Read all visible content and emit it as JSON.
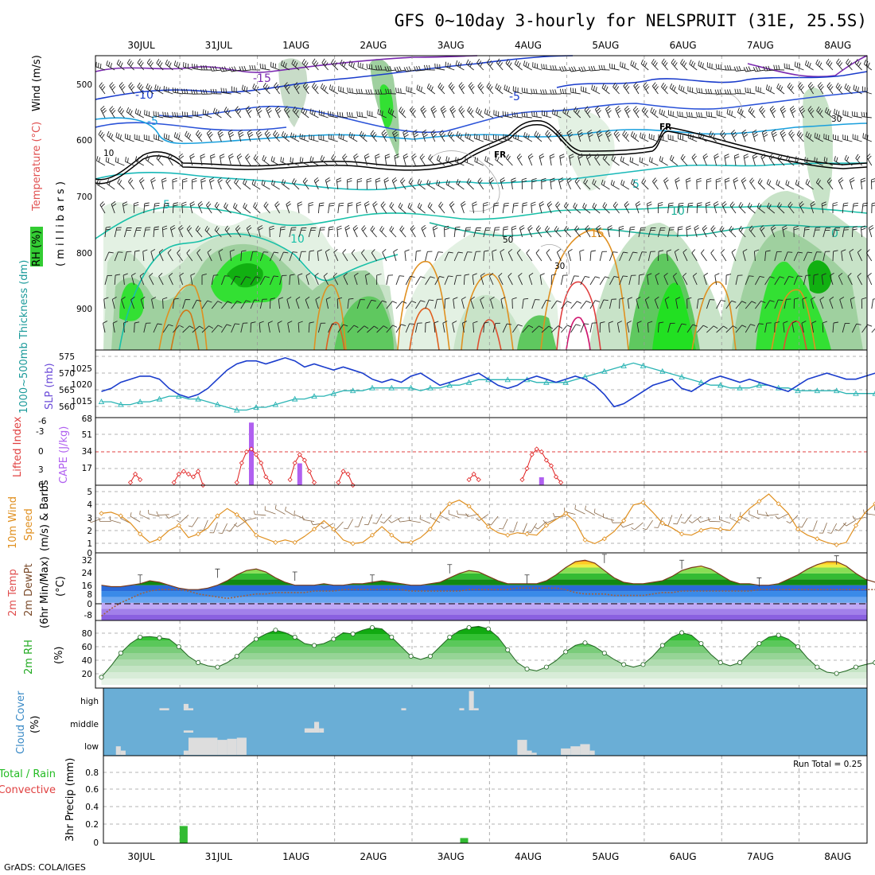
{
  "title": "GFS 0~10day 3-hourly for NELSPRUIT (31E, 25.5S)",
  "footer": "GrADS: COLA/IGES",
  "dates": [
    "30JUL",
    "31JUL",
    "1AUG",
    "2AUG",
    "3AUG",
    "4AUG",
    "5AUG",
    "6AUG",
    "7AUG",
    "8AUG"
  ],
  "panels": {
    "upper": {
      "ylabel_rh": "RH (%)",
      "ylabel_temp": "Temperature (°C)",
      "ylabel_wind": "Wind (m/s)",
      "ylabel_mb": "( m i l l i b a r s )",
      "ticks": [
        "500",
        "600",
        "700",
        "800",
        "900"
      ],
      "contour_labels": [
        "-15",
        "-10",
        "-5",
        "-5",
        "FR",
        "FR",
        "5",
        "5",
        "10",
        "10",
        "15",
        "0",
        "10",
        "30",
        "50",
        "30"
      ]
    },
    "slp": {
      "ylabel_thick": "1000~500mb Thickness (dm)",
      "ylabel_slp": "SLP (mb)",
      "ticks_left": [
        "575",
        "570",
        "565",
        "560"
      ],
      "ticks_right": [
        "1025",
        "1020",
        "1015"
      ]
    },
    "cape": {
      "ylabel_li": "Lifted Index",
      "ylabel_cape": "CAPE (J/kg)",
      "ticks_left": [
        "-6",
        "-3",
        "0",
        "3",
        "6"
      ],
      "ticks_right": [
        "68",
        "51",
        "34",
        "17"
      ]
    },
    "wind10": {
      "ylabel1": "10m Wind",
      "ylabel2": "Speed",
      "ylabel3": "(m/s) & Barbs",
      "ticks": [
        "5",
        "4",
        "3",
        "2",
        "1",
        "0"
      ]
    },
    "temp2m": {
      "ylabel1": "2m Temp",
      "ylabel2": "2m DewPt",
      "ylabel3": "(6hr Min/Max)",
      "ylabel4": "(°C)",
      "ticks": [
        "32",
        "24",
        "16",
        "8",
        "0",
        "-8"
      ]
    },
    "rh2m": {
      "ylabel1": "2m RH",
      "ylabel2": "(%)",
      "ticks": [
        "80",
        "60",
        "40",
        "20"
      ]
    },
    "cloud": {
      "ylabel1": "Cloud Cover",
      "ylabel2": "(%)",
      "levels": [
        "high",
        "middle",
        "low"
      ]
    },
    "precip": {
      "ylabel1": "Total / Rain",
      "ylabel2": "Convective",
      "ylabel3": "3hr Precip (mm)",
      "run_total": "Run Total = 0.25",
      "ticks": [
        "0.8",
        "0.6",
        "0.4",
        "0.2",
        "0"
      ]
    }
  },
  "colors": {
    "slp": "#1a3ccc",
    "thickness": "#2ab4b4",
    "cape": "#b060f0",
    "li": "#e02020",
    "wind_speed": "#e09020",
    "barb": "#8a6a4a",
    "temp_fill": "#3a9a3a",
    "rh_fill": "#3cc83c",
    "cloud_bg": "#6aaed6",
    "cloud_bar": "#dddddd",
    "precip": "#33bb33"
  },
  "chart_data": [
    {
      "type": "line",
      "name": "slp",
      "x_unit": "hours since 29JUL 12Z (3-hourly)",
      "ylim": [
        1010,
        1029
      ],
      "values": [
        1017,
        1018,
        1020,
        1021,
        1022,
        1022,
        1021,
        1018,
        1016,
        1015,
        1016,
        1018,
        1021,
        1024,
        1026,
        1027,
        1027,
        1026,
        1027,
        1028,
        1027,
        1025,
        1026,
        1025,
        1024,
        1025,
        1024,
        1023,
        1021,
        1020,
        1021,
        1020,
        1022,
        1023,
        1021,
        1019,
        1020,
        1021,
        1022,
        1023,
        1021,
        1019,
        1018,
        1019,
        1021,
        1022,
        1021,
        1020,
        1021,
        1022,
        1021,
        1019,
        1016,
        1012,
        1013,
        1015,
        1017,
        1019,
        1020,
        1021,
        1018,
        1017,
        1019,
        1021,
        1022,
        1021,
        1020,
        1021,
        1020,
        1019,
        1018,
        1017,
        1019,
        1021,
        1022,
        1023,
        1022,
        1021,
        1021,
        1022,
        1023,
        1022,
        1023,
        1024,
        1023,
        1022,
        1022,
        1023,
        1022,
        1021,
        1021,
        1022,
        1022,
        1021,
        1022,
        1023,
        1023,
        1022,
        1023,
        1023,
        1024,
        1023,
        1022,
        1021,
        1021,
        1021,
        1021,
        1022,
        1022,
        1021,
        1022,
        1021,
        1021,
        1021,
        1021,
        1021
      ]
    },
    {
      "type": "line",
      "name": "thickness",
      "ylim": [
        557,
        578
      ],
      "values": [
        561,
        561,
        560,
        560,
        561,
        561,
        562,
        563,
        563,
        562,
        562,
        561,
        560,
        559,
        558,
        558,
        559,
        559,
        560,
        561,
        562,
        562,
        563,
        563,
        564,
        565,
        565,
        565,
        566,
        566,
        566,
        566,
        566,
        565,
        566,
        566,
        567,
        567,
        568,
        569,
        569,
        569,
        569,
        569,
        569,
        568,
        568,
        568,
        568,
        569,
        570,
        571,
        572,
        573,
        574,
        575,
        574,
        573,
        572,
        571,
        570,
        569,
        568,
        567,
        567,
        566,
        566,
        566,
        567,
        567,
        566,
        566,
        565,
        565,
        565,
        565,
        565,
        564,
        564,
        564,
        564,
        564,
        564,
        563,
        563,
        563,
        562,
        562,
        563,
        563,
        564,
        565,
        565,
        565,
        564,
        564,
        563,
        563,
        562,
        562,
        563,
        563,
        563,
        563,
        563,
        564,
        564,
        564,
        564,
        565,
        565,
        565,
        566,
        566,
        567,
        567
      ]
    },
    {
      "type": "bar",
      "name": "cape",
      "ylim": [
        0,
        68
      ],
      "bars": [
        [
          15.5,
          63
        ],
        [
          20.5,
          22
        ],
        [
          45.5,
          8
        ]
      ]
    },
    {
      "type": "line",
      "name": "lifted_index",
      "ylim": [
        -6,
        6
      ],
      "segments": [
        [
          [
            3.0,
            5.5
          ],
          [
            3.5,
            4.0
          ],
          [
            4.0,
            5.0
          ]
        ],
        [
          [
            7.5,
            5.5
          ],
          [
            8.0,
            4.0
          ],
          [
            8.5,
            3.5
          ],
          [
            9.0,
            4.0
          ],
          [
            9.5,
            4.5
          ],
          [
            10.0,
            3.5
          ],
          [
            10.5,
            6.0
          ]
        ],
        [
          [
            14.0,
            5.5
          ],
          [
            14.5,
            2.0
          ],
          [
            15.0,
            0.0
          ],
          [
            15.5,
            -0.5
          ],
          [
            16.0,
            0.5
          ],
          [
            16.5,
            2.0
          ],
          [
            17.0,
            4.5
          ],
          [
            17.5,
            5.5
          ]
        ],
        [
          [
            19.5,
            5.0
          ],
          [
            20.0,
            2.0
          ],
          [
            20.5,
            0.5
          ],
          [
            21.0,
            1.5
          ],
          [
            21.5,
            3.5
          ],
          [
            22.0,
            5.5
          ]
        ],
        [
          [
            24.5,
            5.5
          ],
          [
            25.0,
            3.5
          ],
          [
            25.5,
            4.0
          ],
          [
            26.0,
            6.0
          ]
        ],
        [
          [
            38.0,
            5.0
          ],
          [
            38.5,
            4.0
          ],
          [
            39.0,
            5.0
          ]
        ],
        [
          [
            43.5,
            5.0
          ],
          [
            44.0,
            3.0
          ],
          [
            44.5,
            0.5
          ],
          [
            45.0,
            -0.5
          ],
          [
            45.5,
            0.0
          ],
          [
            46.0,
            1.5
          ],
          [
            46.5,
            2.5
          ],
          [
            47.0,
            4.5
          ],
          [
            47.5,
            5.5
          ]
        ]
      ]
    },
    {
      "type": "line",
      "name": "wind10_speed",
      "ylim": [
        0,
        5.2
      ],
      "values": [
        3.0,
        3.1,
        2.8,
        2.2,
        1.3,
        0.6,
        0.9,
        1.6,
        2.0,
        1.0,
        1.3,
        1.8,
        2.8,
        3.4,
        2.9,
        2.2,
        1.2,
        0.9,
        0.6,
        0.8,
        0.6,
        1.1,
        1.7,
        2.4,
        1.7,
        0.8,
        0.5,
        0.6,
        1.2,
        1.9,
        1.2,
        0.6,
        0.6,
        1.0,
        1.7,
        2.9,
        3.8,
        4.1,
        3.6,
        2.8,
        1.9,
        1.4,
        1.2,
        1.4,
        1.3,
        1.2,
        2.0,
        2.5,
        3.0,
        2.3,
        0.8,
        0.5,
        0.9,
        1.5,
        2.4,
        3.7,
        3.9,
        3.1,
        2.2,
        1.8,
        1.3,
        1.2,
        1.6,
        1.8,
        1.7,
        1.6,
        2.6,
        3.4,
        4.0,
        4.6,
        3.8,
        3.0,
        1.7,
        1.2,
        0.9,
        0.6,
        0.4,
        0.6,
        2.0,
        3.1,
        3.8,
        4.1,
        3.7,
        3.3,
        2.0,
        0.6,
        0.9,
        1.3,
        2.0,
        2.6,
        3.2,
        3.8,
        4.0,
        3.4,
        2.2,
        1.3,
        0.6,
        0.9,
        1.0,
        1.2,
        1.6,
        1.9,
        1.6,
        1.2,
        0.6,
        0.9,
        2.2,
        3.5,
        3.5,
        2.9,
        1.8,
        1.2,
        1.5,
        1.0,
        0.8,
        1.2
      ]
    },
    {
      "type": "area",
      "name": "temp2m",
      "ylim": [
        -12,
        34
      ],
      "values": [
        12,
        11,
        11,
        12,
        13,
        15,
        14,
        12,
        10,
        9,
        9,
        10,
        12,
        15,
        19,
        22,
        23,
        21,
        17,
        14,
        12,
        12,
        12,
        13,
        12,
        12,
        13,
        13,
        14,
        15,
        14,
        13,
        12,
        12,
        13,
        14,
        17,
        20,
        22,
        21,
        18,
        15,
        13,
        13,
        13,
        13,
        15,
        19,
        24,
        28,
        29,
        27,
        22,
        17,
        14,
        13,
        13,
        14,
        15,
        18,
        22,
        24,
        25,
        23,
        19,
        15,
        13,
        13,
        12,
        12,
        13,
        16,
        19,
        23,
        26,
        28,
        28,
        25,
        20,
        16,
        14,
        13,
        13,
        13,
        14,
        17,
        20,
        23,
        24,
        23,
        19,
        16,
        13,
        13,
        13,
        13,
        14,
        17,
        21,
        23,
        24,
        22,
        19,
        16,
        14,
        14,
        14,
        14,
        15,
        17,
        20,
        22,
        24,
        22,
        18,
        16
      ]
    },
    {
      "type": "line",
      "name": "dewpoint2m",
      "ylim": [
        -12,
        34
      ],
      "values": [
        -9,
        -4,
        0,
        3,
        6,
        8,
        9,
        9,
        9,
        8,
        6,
        5,
        4,
        3,
        4,
        5,
        6,
        6,
        7,
        7,
        7,
        7,
        8,
        8,
        8,
        9,
        9,
        9,
        9,
        9,
        9,
        9,
        8,
        8,
        8,
        8,
        8,
        8,
        9,
        9,
        9,
        9,
        9,
        10,
        10,
        10,
        10,
        10,
        9,
        7,
        6,
        6,
        6,
        5,
        5,
        5,
        5,
        6,
        7,
        7,
        8,
        8,
        8,
        8,
        8,
        8,
        8,
        8,
        9,
        9,
        9,
        9,
        9,
        9,
        9,
        9,
        9,
        9,
        9,
        9,
        9,
        9,
        9,
        9,
        9,
        9,
        9,
        9,
        9,
        9,
        9,
        9,
        9,
        9,
        9,
        9,
        9,
        9,
        9,
        9,
        9,
        9,
        9,
        9,
        9,
        9,
        9,
        9,
        9,
        9,
        9,
        9,
        9,
        9,
        9,
        9
      ]
    },
    {
      "type": "area",
      "name": "rh2m",
      "ylim": [
        0,
        100
      ],
      "values": [
        12,
        30,
        50,
        65,
        75,
        76,
        74,
        72,
        60,
        45,
        35,
        30,
        28,
        35,
        45,
        60,
        72,
        80,
        86,
        82,
        75,
        65,
        62,
        65,
        72,
        82,
        80,
        86,
        90,
        88,
        75,
        60,
        45,
        40,
        45,
        60,
        75,
        85,
        90,
        92,
        88,
        75,
        55,
        35,
        25,
        22,
        28,
        38,
        52,
        62,
        66,
        60,
        50,
        40,
        32,
        28,
        32,
        45,
        62,
        75,
        82,
        78,
        65,
        48,
        35,
        30,
        35,
        50,
        65,
        75,
        78,
        72,
        60,
        42,
        28,
        20,
        18,
        22,
        28,
        32,
        35,
        38,
        40,
        42,
        38,
        35,
        40,
        55,
        75,
        88,
        92,
        90,
        80,
        68,
        55,
        50,
        50,
        60,
        78,
        88,
        92,
        90,
        80,
        65,
        55,
        48,
        55,
        70,
        82,
        88,
        90,
        90,
        88,
        80,
        70,
        62
      ]
    },
    {
      "type": "bar",
      "name": "cloud_cover",
      "levels": [
        "high",
        "middle",
        "low"
      ],
      "high": [
        [
          6,
          7,
          0.1
        ],
        [
          8.5,
          9,
          0.3
        ],
        [
          9,
          9.5,
          0.1
        ],
        [
          31,
          31.5,
          0.1
        ],
        [
          37,
          37.5,
          0.1
        ],
        [
          38,
          38.5,
          0.9
        ],
        [
          38.5,
          39,
          0.1
        ]
      ],
      "middle": [
        [
          8.5,
          9.5,
          0.1
        ],
        [
          21,
          22,
          0.2
        ],
        [
          22,
          22.5,
          0.5
        ],
        [
          22.5,
          23,
          0.2
        ]
      ],
      "low": [
        [
          1.5,
          2,
          0.4
        ],
        [
          2,
          2.5,
          0.2
        ],
        [
          8.5,
          9,
          0.2
        ],
        [
          9,
          12,
          0.8
        ],
        [
          12,
          13,
          0.7
        ],
        [
          13,
          14,
          0.75
        ],
        [
          14,
          15,
          0.8
        ],
        [
          43,
          44,
          0.7
        ],
        [
          44,
          44.5,
          0.2
        ],
        [
          44.5,
          45,
          0.1
        ],
        [
          47.5,
          48.5,
          0.3
        ],
        [
          48.5,
          49.5,
          0.4
        ],
        [
          49.5,
          50.5,
          0.5
        ],
        [
          50.5,
          51,
          0.2
        ]
      ]
    },
    {
      "type": "bar",
      "name": "precip_3hr",
      "ylim": [
        0,
        1.0
      ],
      "bars": [
        [
          8.5,
          0.2
        ],
        [
          37.5,
          0.06
        ]
      ]
    }
  ]
}
